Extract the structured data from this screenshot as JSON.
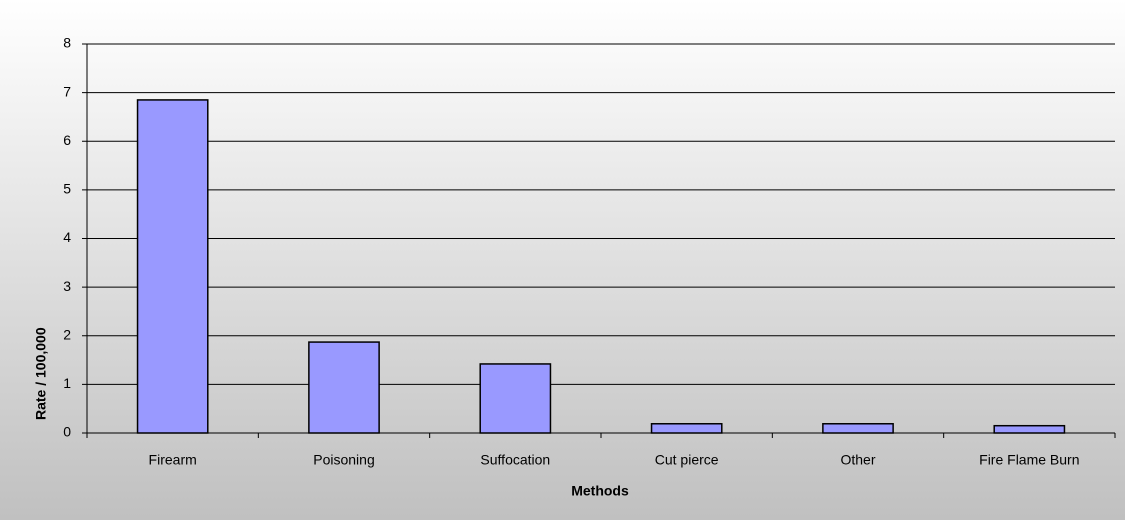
{
  "chart_data": {
    "type": "bar",
    "x_label": "Methods",
    "y_label": "Rate / 100,000",
    "categories": [
      "Firearm",
      "Poisoning",
      "Suffocation",
      "Cut pierce",
      "Other",
      "Fire Flame Burn"
    ],
    "values": [
      6.85,
      1.87,
      1.42,
      0.19,
      0.19,
      0.15
    ],
    "color": "#9999ff",
    "ylim": [
      0,
      8
    ],
    "yticks": [
      0,
      1,
      2,
      3,
      4,
      5,
      6,
      7,
      8
    ],
    "grid": true
  }
}
